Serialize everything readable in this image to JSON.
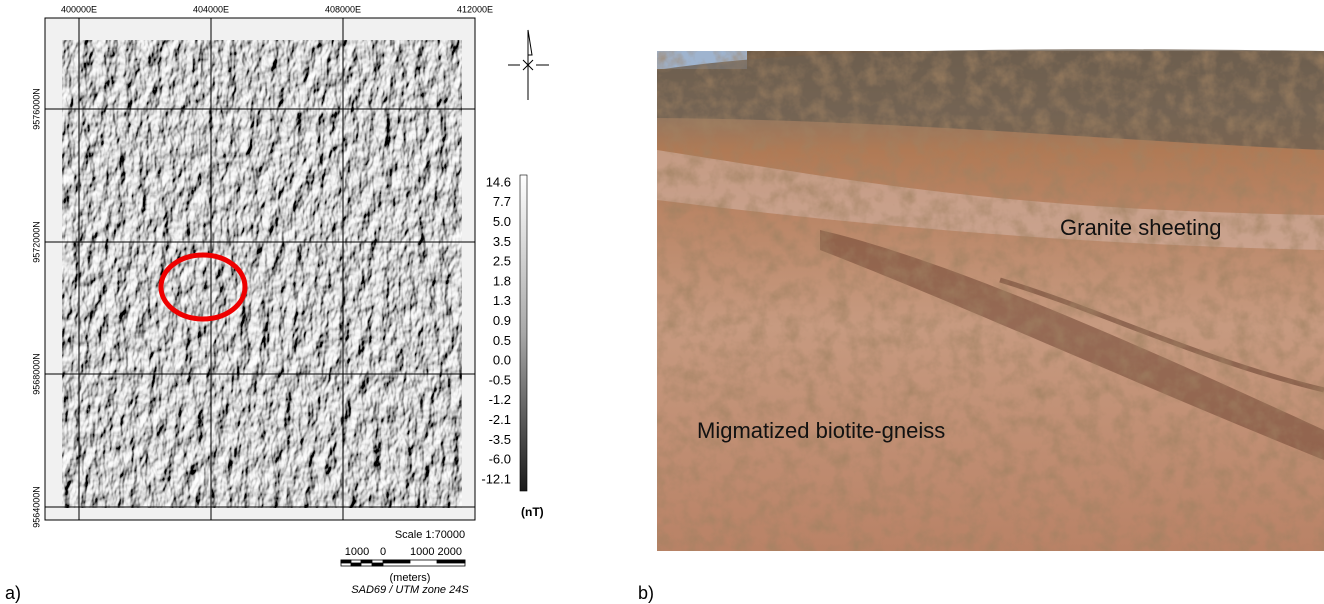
{
  "panel_a": {
    "label": "a)",
    "easting_labels": [
      "400000E",
      "404000E",
      "408000E",
      "412000E"
    ],
    "northing_labels": [
      "9576000N",
      "9572000N",
      "9568000N",
      "9564000N"
    ],
    "legend_labels": [
      "14.6",
      "7.7",
      "5.0",
      "3.5",
      "2.5",
      "1.8",
      "1.3",
      "0.9",
      "0.5",
      "0.0",
      "-0.5",
      "-1.2",
      "-2.1",
      "-3.5",
      "-6.0",
      "-12.1"
    ],
    "legend_unit": "(nT)",
    "scale_title": "Scale 1:70000",
    "scale_labels": [
      "1000",
      "0",
      "1000 2000"
    ],
    "scale_unit": "(meters)",
    "projection": "SAD69 / UTM zone 24S"
  },
  "panel_b": {
    "label": "b)",
    "annotations": [
      "Granite sheeting",
      "Migmatized biotite-gneiss"
    ]
  }
}
